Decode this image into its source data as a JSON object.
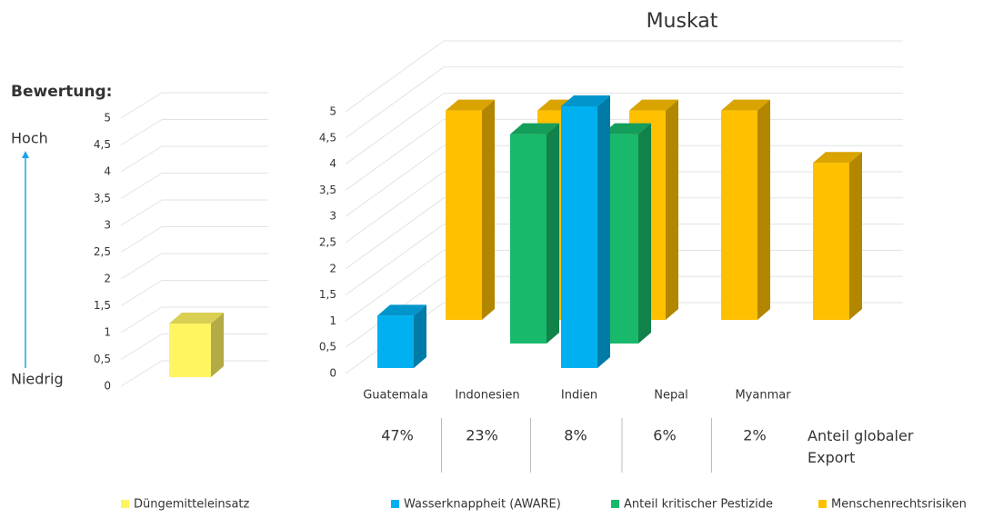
{
  "chart_data": [
    {
      "type": "bar3d",
      "title": "Bewertung:",
      "annotations": [
        "Hoch",
        "Niedrig"
      ],
      "categories": [
        null
      ],
      "series": [
        {
          "name": "Düngemitteleinsatz",
          "color": "#fff462",
          "values": [
            1
          ]
        }
      ],
      "ylim": [
        0,
        5
      ],
      "yticks": [
        0,
        {
          "value": 0.5,
          "label": "0,5"
        },
        1,
        {
          "value": 1.5,
          "label": "1,5"
        },
        2,
        {
          "value": 2.5,
          "label": "2,5"
        },
        3,
        {
          "value": 3.5,
          "label": "3,5"
        },
        4,
        {
          "value": 4.5,
          "label": "4,5"
        },
        5
      ],
      "grid": true
    },
    {
      "type": "bar3d",
      "title": "Muskat",
      "categories": [
        "Guatemala",
        "Indonesien",
        "Indien",
        "Nepal",
        "Myanmar"
      ],
      "series": [
        {
          "name": "Wasserknappheit (AWARE)",
          "color": "#00b0f0",
          "values": [
            1,
            null,
            5,
            null,
            null
          ]
        },
        {
          "name": "Anteil kritischer Pestizide",
          "color": "#19b96b",
          "values": [
            null,
            4,
            4,
            null,
            null
          ]
        },
        {
          "name": "Menschenrechtsrisiken",
          "color": "#ffc000",
          "values": [
            4,
            4,
            4,
            4,
            3
          ]
        }
      ],
      "ylim": [
        0,
        5
      ],
      "yticks": [
        0,
        {
          "value": 0.5,
          "label": "0,5"
        },
        1,
        {
          "value": 1.5,
          "label": "1,5"
        },
        2,
        {
          "value": 2.5,
          "label": "2,5"
        },
        3,
        {
          "value": 3.5,
          "label": "3,5"
        },
        4,
        {
          "value": 4.5,
          "label": "4,5"
        },
        5
      ],
      "grid": true,
      "export_share": {
        "label": "Anteil globaler Export",
        "values": [
          47,
          23,
          8,
          6,
          2
        ],
        "value_labels": [
          "47%",
          "23%",
          "8%",
          "6%",
          "2%"
        ]
      }
    }
  ]
}
